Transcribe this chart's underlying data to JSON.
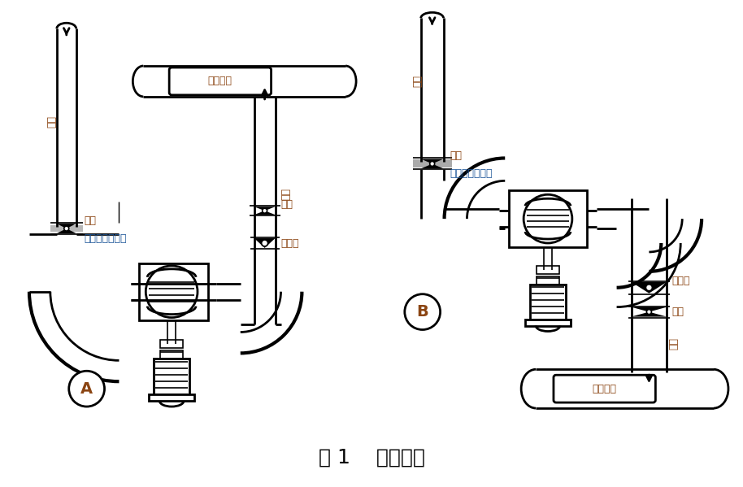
{
  "title": "图 1    水泵配管",
  "title_fontsize": 18,
  "background_color": "#ffffff",
  "line_color": "#000000",
  "label_color_cn": "#8B4513",
  "label_color_blue": "#1E5799",
  "label_A": "A",
  "label_B": "B",
  "text_jin_shui": "进水",
  "text_chu_shui": "出水",
  "text_mai_di": "埋地敷设",
  "text_die_fa": "蝶阀",
  "text_zhi_hui": "止回阀",
  "text_ke_qu": "可曲挠橡胶接头"
}
